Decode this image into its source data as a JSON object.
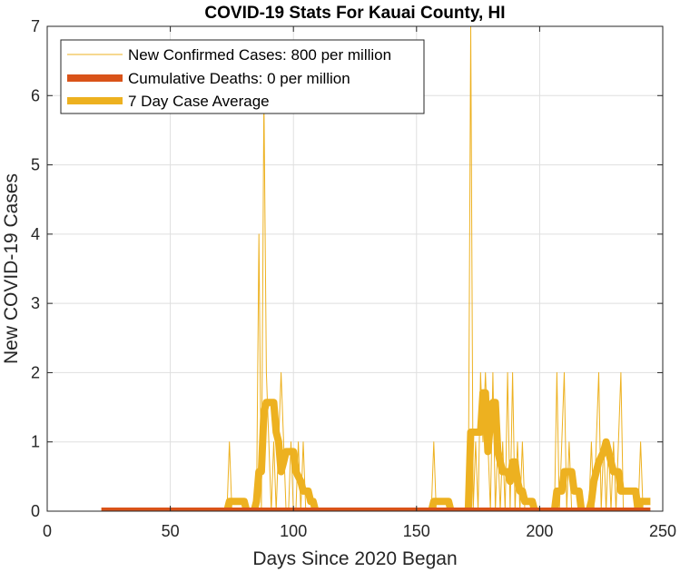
{
  "chart_data": {
    "type": "line",
    "title": "COVID-19 Stats For Kauai County, HI",
    "xlabel": "Days Since 2020 Began",
    "ylabel": "New COVID-19 Cases",
    "xlim": [
      0,
      250
    ],
    "ylim": [
      0,
      7
    ],
    "xticks": [
      0,
      50,
      100,
      150,
      200,
      250
    ],
    "yticks": [
      0,
      1,
      2,
      3,
      4,
      5,
      6,
      7
    ],
    "grid": true,
    "legend_position": "top-left",
    "series": [
      {
        "name": "New Confirmed Cases: 800 per million",
        "color": "#EDB120",
        "style": "thin",
        "points": [
          [
            22,
            0
          ],
          [
            73,
            0
          ],
          [
            74,
            1
          ],
          [
            75,
            0
          ],
          [
            85,
            0
          ],
          [
            86,
            4
          ],
          [
            87,
            0
          ],
          [
            88,
            6
          ],
          [
            89,
            2
          ],
          [
            90,
            1
          ],
          [
            91,
            0
          ],
          [
            92,
            1
          ],
          [
            93,
            0
          ],
          [
            94,
            1
          ],
          [
            95,
            2
          ],
          [
            96,
            1
          ],
          [
            97,
            0
          ],
          [
            98,
            0
          ],
          [
            99,
            1
          ],
          [
            100,
            0
          ],
          [
            101,
            0
          ],
          [
            102,
            1
          ],
          [
            103,
            0
          ],
          [
            104,
            1
          ],
          [
            105,
            0
          ],
          [
            106,
            0
          ],
          [
            108,
            0
          ],
          [
            109,
            0
          ],
          [
            156,
            0
          ],
          [
            157,
            1
          ],
          [
            158,
            0
          ],
          [
            171,
            0
          ],
          [
            172,
            7
          ],
          [
            173,
            0
          ],
          [
            174,
            1
          ],
          [
            175,
            0
          ],
          [
            176,
            2
          ],
          [
            177,
            1
          ],
          [
            178,
            2
          ],
          [
            179,
            1
          ],
          [
            180,
            0
          ],
          [
            181,
            2
          ],
          [
            182,
            0
          ],
          [
            183,
            1
          ],
          [
            184,
            0
          ],
          [
            185,
            1
          ],
          [
            186,
            0
          ],
          [
            187,
            2
          ],
          [
            188,
            0
          ],
          [
            189,
            2
          ],
          [
            190,
            0
          ],
          [
            191,
            1
          ],
          [
            192,
            0
          ],
          [
            193,
            1
          ],
          [
            194,
            0
          ],
          [
            206,
            0
          ],
          [
            207,
            2
          ],
          [
            208,
            0
          ],
          [
            209,
            1
          ],
          [
            210,
            2
          ],
          [
            211,
            0
          ],
          [
            212,
            1
          ],
          [
            213,
            0
          ],
          [
            220,
            0
          ],
          [
            221,
            1
          ],
          [
            222,
            0
          ],
          [
            223,
            1
          ],
          [
            224,
            2
          ],
          [
            225,
            0
          ],
          [
            226,
            1
          ],
          [
            227,
            0
          ],
          [
            228,
            1
          ],
          [
            229,
            0
          ],
          [
            230,
            1
          ],
          [
            231,
            0
          ],
          [
            232,
            1
          ],
          [
            233,
            2
          ],
          [
            234,
            0
          ],
          [
            240,
            0
          ],
          [
            241,
            1
          ],
          [
            242,
            0
          ],
          [
            245,
            0
          ]
        ]
      },
      {
        "name": "Cumulative Deaths: 0 per million",
        "color": "#D95319",
        "style": "thick",
        "points": [
          [
            22,
            0
          ],
          [
            245,
            0
          ]
        ]
      },
      {
        "name": "7 Day Case Average",
        "color": "#EDB120",
        "style": "thick",
        "points": [
          [
            22,
            0
          ],
          [
            73,
            0
          ],
          [
            74,
            0.14
          ],
          [
            80,
            0.14
          ],
          [
            81,
            0
          ],
          [
            84,
            0
          ],
          [
            85,
            0.14
          ],
          [
            86,
            0.57
          ],
          [
            87,
            0.57
          ],
          [
            88,
            1.43
          ],
          [
            89,
            1.57
          ],
          [
            92,
            1.57
          ],
          [
            93,
            1.14
          ],
          [
            94,
            1.0
          ],
          [
            95,
            0.57
          ],
          [
            96,
            0.71
          ],
          [
            97,
            0.86
          ],
          [
            100,
            0.86
          ],
          [
            101,
            0.57
          ],
          [
            103,
            0.43
          ],
          [
            104,
            0.29
          ],
          [
            106,
            0.29
          ],
          [
            107,
            0.14
          ],
          [
            108,
            0.14
          ],
          [
            109,
            0
          ],
          [
            156,
            0
          ],
          [
            157,
            0.14
          ],
          [
            163,
            0.14
          ],
          [
            164,
            0
          ],
          [
            171,
            0
          ],
          [
            172,
            1.14
          ],
          [
            176,
            1.14
          ],
          [
            177,
            1.71
          ],
          [
            178,
            1.71
          ],
          [
            179,
            0.86
          ],
          [
            180,
            1.29
          ],
          [
            181,
            1.57
          ],
          [
            182,
            1.57
          ],
          [
            183,
            0.86
          ],
          [
            184,
            0.71
          ],
          [
            185,
            0.57
          ],
          [
            187,
            0.57
          ],
          [
            188,
            0.43
          ],
          [
            189,
            0.71
          ],
          [
            190,
            0.71
          ],
          [
            191,
            0.43
          ],
          [
            192,
            0.29
          ],
          [
            193,
            0.29
          ],
          [
            194,
            0.14
          ],
          [
            197,
            0.14
          ],
          [
            198,
            0
          ],
          [
            206,
            0
          ],
          [
            207,
            0.29
          ],
          [
            209,
            0.29
          ],
          [
            210,
            0.57
          ],
          [
            213,
            0.57
          ],
          [
            214,
            0.29
          ],
          [
            216,
            0.29
          ],
          [
            217,
            0
          ],
          [
            220,
            0
          ],
          [
            221,
            0.14
          ],
          [
            222,
            0.43
          ],
          [
            223,
            0.57
          ],
          [
            224,
            0.71
          ],
          [
            226,
            0.86
          ],
          [
            227,
            1.0
          ],
          [
            228,
            0.86
          ],
          [
            229,
            0.71
          ],
          [
            230,
            0.57
          ],
          [
            232,
            0.57
          ],
          [
            233,
            0.29
          ],
          [
            239,
            0.29
          ],
          [
            240,
            0
          ],
          [
            241,
            0.14
          ],
          [
            245,
            0.14
          ]
        ]
      }
    ]
  }
}
